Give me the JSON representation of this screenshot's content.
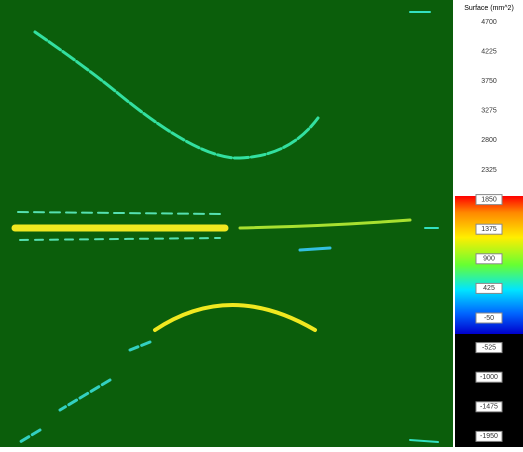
{
  "colorbar": {
    "title": "Surface (mm^2)",
    "ticks": [
      "4700",
      "4225",
      "3750",
      "3275",
      "2800",
      "2325",
      "1850",
      "1375",
      "900",
      "425",
      "-50",
      "-525",
      "-1000",
      "-1475",
      "-1950"
    ]
  }
}
